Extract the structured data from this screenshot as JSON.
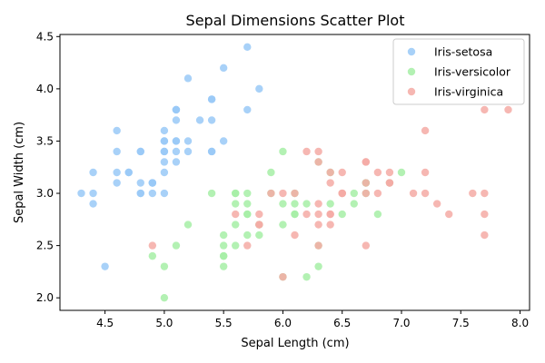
{
  "chart_data": {
    "type": "scatter",
    "title": "Sepal Dimensions Scatter Plot",
    "xlabel": "Sepal Length (cm)",
    "ylabel": "Sepal Width (cm)",
    "xlim": [
      4.12,
      8.08
    ],
    "ylim": [
      1.88,
      4.52
    ],
    "xticks": [
      4.5,
      5.0,
      5.5,
      6.0,
      6.5,
      7.0,
      7.5,
      8.0
    ],
    "xtick_labels": [
      "4.5",
      "5.0",
      "5.5",
      "6.0",
      "6.5",
      "7.0",
      "7.5",
      "8.0"
    ],
    "yticks": [
      2.0,
      2.5,
      3.0,
      3.5,
      4.0,
      4.5
    ],
    "ytick_labels": [
      "2.0",
      "2.5",
      "3.0",
      "3.5",
      "4.0",
      "4.5"
    ],
    "grid": false,
    "legend_position": "top-right",
    "series": [
      {
        "name": "Iris-setosa",
        "color": "#99c9f7",
        "points": [
          [
            5.1,
            3.5
          ],
          [
            4.9,
            3.0
          ],
          [
            4.7,
            3.2
          ],
          [
            4.6,
            3.1
          ],
          [
            5.0,
            3.6
          ],
          [
            5.4,
            3.9
          ],
          [
            4.6,
            3.4
          ],
          [
            5.0,
            3.4
          ],
          [
            4.4,
            2.9
          ],
          [
            4.9,
            3.1
          ],
          [
            5.4,
            3.7
          ],
          [
            4.8,
            3.4
          ],
          [
            4.8,
            3.0
          ],
          [
            4.3,
            3.0
          ],
          [
            5.8,
            4.0
          ],
          [
            5.7,
            4.4
          ],
          [
            5.4,
            3.9
          ],
          [
            5.1,
            3.5
          ],
          [
            5.7,
            3.8
          ],
          [
            5.1,
            3.8
          ],
          [
            5.4,
            3.4
          ],
          [
            5.1,
            3.7
          ],
          [
            4.6,
            3.6
          ],
          [
            5.1,
            3.3
          ],
          [
            4.8,
            3.4
          ],
          [
            5.0,
            3.0
          ],
          [
            5.0,
            3.4
          ],
          [
            5.2,
            3.5
          ],
          [
            5.2,
            3.4
          ],
          [
            4.7,
            3.2
          ],
          [
            4.8,
            3.1
          ],
          [
            5.4,
            3.4
          ],
          [
            5.2,
            4.1
          ],
          [
            5.5,
            4.2
          ],
          [
            4.9,
            3.1
          ],
          [
            5.0,
            3.2
          ],
          [
            5.5,
            3.5
          ],
          [
            4.9,
            3.1
          ],
          [
            4.4,
            3.0
          ],
          [
            5.1,
            3.4
          ],
          [
            5.0,
            3.5
          ],
          [
            4.5,
            2.3
          ],
          [
            4.4,
            3.2
          ],
          [
            5.0,
            3.5
          ],
          [
            5.1,
            3.8
          ],
          [
            4.8,
            3.0
          ],
          [
            5.1,
            3.8
          ],
          [
            4.6,
            3.2
          ],
          [
            5.3,
            3.7
          ],
          [
            5.0,
            3.3
          ]
        ]
      },
      {
        "name": "Iris-versicolor",
        "color": "#a6eea6",
        "points": [
          [
            7.0,
            3.2
          ],
          [
            6.4,
            3.2
          ],
          [
            6.9,
            3.1
          ],
          [
            5.5,
            2.3
          ],
          [
            6.5,
            2.8
          ],
          [
            5.7,
            2.8
          ],
          [
            6.3,
            3.3
          ],
          [
            4.9,
            2.4
          ],
          [
            6.6,
            2.9
          ],
          [
            5.2,
            2.7
          ],
          [
            5.0,
            2.0
          ],
          [
            5.9,
            3.0
          ],
          [
            6.0,
            2.2
          ],
          [
            6.1,
            2.9
          ],
          [
            5.6,
            2.9
          ],
          [
            6.7,
            3.1
          ],
          [
            5.6,
            3.0
          ],
          [
            5.8,
            2.7
          ],
          [
            6.2,
            2.2
          ],
          [
            5.6,
            2.5
          ],
          [
            5.9,
            3.2
          ],
          [
            6.1,
            2.8
          ],
          [
            6.3,
            2.5
          ],
          [
            6.1,
            2.8
          ],
          [
            6.4,
            2.9
          ],
          [
            6.6,
            3.0
          ],
          [
            6.8,
            2.8
          ],
          [
            6.7,
            3.0
          ],
          [
            6.0,
            2.9
          ],
          [
            5.7,
            2.6
          ],
          [
            5.5,
            2.4
          ],
          [
            5.5,
            2.4
          ],
          [
            5.8,
            2.7
          ],
          [
            6.0,
            2.7
          ],
          [
            5.4,
            3.0
          ],
          [
            6.0,
            3.4
          ],
          [
            6.7,
            3.1
          ],
          [
            6.3,
            2.3
          ],
          [
            5.6,
            3.0
          ],
          [
            5.5,
            2.5
          ],
          [
            5.5,
            2.6
          ],
          [
            6.1,
            3.0
          ],
          [
            5.8,
            2.6
          ],
          [
            5.0,
            2.3
          ],
          [
            5.6,
            2.7
          ],
          [
            5.7,
            3.0
          ],
          [
            5.7,
            2.9
          ],
          [
            6.2,
            2.9
          ],
          [
            5.1,
            2.5
          ],
          [
            5.7,
            2.8
          ]
        ]
      },
      {
        "name": "Iris-virginica",
        "color": "#f5aaa5",
        "points": [
          [
            6.3,
            3.3
          ],
          [
            5.8,
            2.7
          ],
          [
            7.1,
            3.0
          ],
          [
            6.3,
            2.9
          ],
          [
            6.5,
            3.0
          ],
          [
            7.6,
            3.0
          ],
          [
            4.9,
            2.5
          ],
          [
            7.3,
            2.9
          ],
          [
            6.7,
            2.5
          ],
          [
            7.2,
            3.6
          ],
          [
            6.5,
            3.2
          ],
          [
            6.4,
            2.7
          ],
          [
            6.8,
            3.0
          ],
          [
            5.7,
            2.5
          ],
          [
            5.8,
            2.8
          ],
          [
            6.4,
            3.2
          ],
          [
            6.5,
            3.0
          ],
          [
            7.7,
            3.8
          ],
          [
            7.7,
            2.6
          ],
          [
            6.0,
            2.2
          ],
          [
            6.9,
            3.2
          ],
          [
            5.6,
            2.8
          ],
          [
            7.7,
            2.8
          ],
          [
            6.3,
            2.7
          ],
          [
            6.7,
            3.3
          ],
          [
            7.2,
            3.2
          ],
          [
            6.2,
            2.8
          ],
          [
            6.1,
            3.0
          ],
          [
            6.4,
            2.8
          ],
          [
            7.2,
            3.0
          ],
          [
            7.4,
            2.8
          ],
          [
            7.9,
            3.8
          ],
          [
            6.4,
            2.8
          ],
          [
            6.3,
            2.8
          ],
          [
            6.1,
            2.6
          ],
          [
            7.7,
            3.0
          ],
          [
            6.3,
            3.4
          ],
          [
            6.4,
            3.1
          ],
          [
            6.0,
            3.0
          ],
          [
            6.9,
            3.1
          ],
          [
            6.7,
            3.1
          ],
          [
            6.9,
            3.1
          ],
          [
            5.8,
            2.7
          ],
          [
            6.8,
            3.2
          ],
          [
            6.7,
            3.3
          ],
          [
            6.7,
            3.0
          ],
          [
            6.3,
            2.5
          ],
          [
            6.5,
            3.0
          ],
          [
            6.2,
            3.4
          ],
          [
            5.9,
            3.0
          ]
        ]
      }
    ]
  }
}
